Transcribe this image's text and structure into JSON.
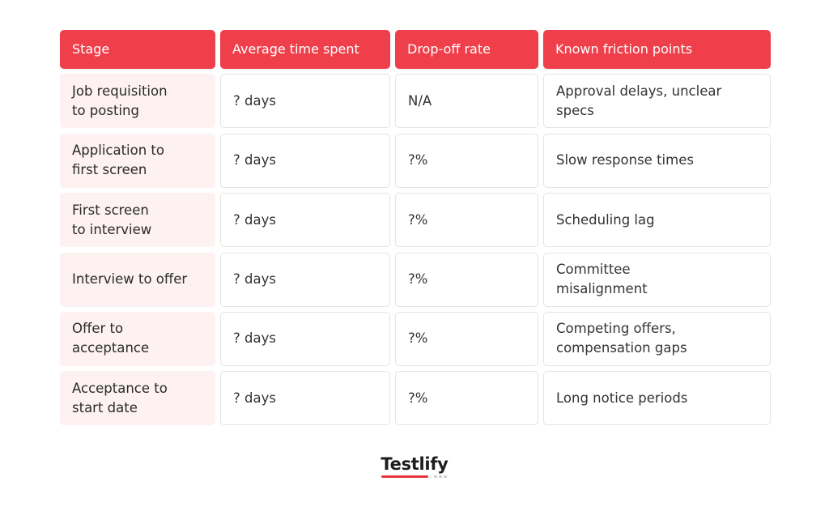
{
  "colors": {
    "header_bg": "#ef3f4a",
    "stage_bg": "#fdf1f1",
    "brand_accent": "#e8343f",
    "brand_dots": "#cfcfcf"
  },
  "table": {
    "headers": [
      "Stage",
      "Average time spent",
      "Drop-off rate",
      "Known friction points"
    ],
    "rows": [
      {
        "stage": "Job requisition\nto posting",
        "time": "? days",
        "dropoff": "N/A",
        "friction": "Approval delays, unclear\nspecs"
      },
      {
        "stage": "Application to\nfirst screen",
        "time": "? days",
        "dropoff": "?%",
        "friction": "Slow response times"
      },
      {
        "stage": "First screen\nto interview",
        "time": "? days",
        "dropoff": "?%",
        "friction": "Scheduling lag"
      },
      {
        "stage": "Interview to offer",
        "time": "? days",
        "dropoff": "?%",
        "friction": "Committee\nmisalignment"
      },
      {
        "stage": "Offer to\nacceptance",
        "time": "? days",
        "dropoff": "?%",
        "friction": "Competing offers,\ncompensation gaps"
      },
      {
        "stage": "Acceptance to\nstart date",
        "time": "? days",
        "dropoff": "?%",
        "friction": "Long notice periods"
      }
    ]
  },
  "brand": {
    "name": "Testlify",
    "logo_icon": "testlify-logo"
  }
}
